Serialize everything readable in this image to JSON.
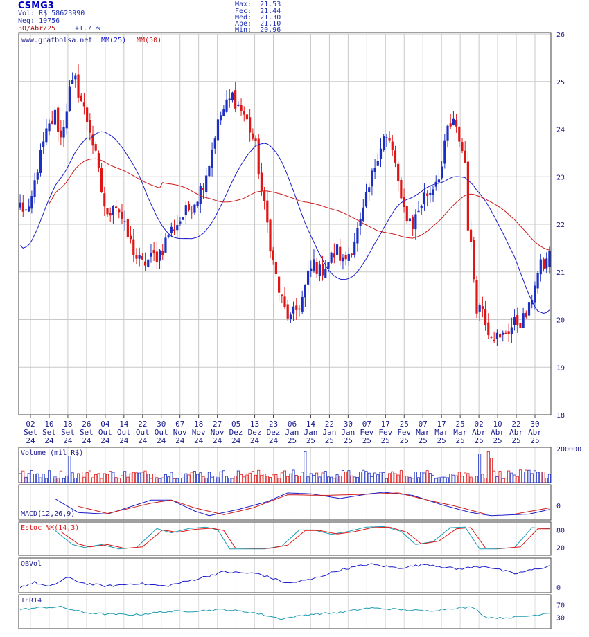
{
  "header": {
    "ticker": "CSMG3",
    "volume": "Vol: R$ 58623990",
    "negocios": "Neg: 10756",
    "date": "30/Abr/25",
    "change": "+1.7 %",
    "max": "Max:  21.53",
    "fec": "Fec:  21.44",
    "med": "Med:  21.30",
    "abe": "Abe:  21.10",
    "min": "Min:  20.96"
  },
  "colors": {
    "up": "#1c2fc2",
    "down": "#e01616",
    "ma25": "#1a1ac8",
    "ma50": "#cc1a1a",
    "grid": "#c8c8c8",
    "cyan": "#1a9ab0"
  },
  "chart_data": [
    {
      "type": "candlestick",
      "source_label": "www.grafbolsa.net",
      "legend": [
        "MM(25)",
        "MM(50)"
      ],
      "ylim": [
        18,
        26
      ],
      "yticks": [
        "18",
        "19",
        "20",
        "21",
        "22",
        "23",
        "24",
        "25",
        "26"
      ],
      "x_dates": [
        "02 Set 24",
        "10 Set 24",
        "18 Set 24",
        "26 Set 24",
        "04 Out 24",
        "14 Out 24",
        "22 Out 24",
        "30 Out 24",
        "07 Nov 24",
        "18 Nov 24",
        "27 Nov 24",
        "05 Dez 24",
        "13 Dez 24",
        "23 Dez 24",
        "06 Jan 25",
        "14 Jan 25",
        "22 Jan 25",
        "30 Jan 25",
        "07 Fev 25",
        "17 Fev 25",
        "25 Fev 25",
        "07 Mar 25",
        "17 Mar 25",
        "25 Mar 25",
        "02 Abr 25",
        "10 Abr 25",
        "22 Abr 25",
        "30 Abr 25"
      ],
      "grid": true,
      "close_path": [
        [
          0,
          22.4
        ],
        [
          3,
          22.2
        ],
        [
          6,
          23.2
        ],
        [
          9,
          23.9
        ],
        [
          12,
          24.3
        ],
        [
          14,
          23.8
        ],
        [
          17,
          24.8
        ],
        [
          19,
          25.0
        ],
        [
          22,
          24.4
        ],
        [
          24,
          24.0
        ],
        [
          26,
          23.4
        ],
        [
          28,
          22.7
        ],
        [
          30,
          22.1
        ],
        [
          32,
          22.5
        ],
        [
          34,
          22.3
        ],
        [
          36,
          21.9
        ],
        [
          38,
          21.6
        ],
        [
          40,
          21.3
        ],
        [
          42,
          21.15
        ],
        [
          44,
          21.25
        ],
        [
          47,
          21.35
        ],
        [
          49,
          21.5
        ],
        [
          51,
          21.8
        ],
        [
          53,
          21.95
        ],
        [
          55,
          22.1
        ],
        [
          57,
          22.25
        ],
        [
          59,
          22.4
        ],
        [
          61,
          22.6
        ],
        [
          63,
          22.9
        ],
        [
          65,
          23.3
        ],
        [
          67,
          23.9
        ],
        [
          69,
          24.3
        ],
        [
          71,
          24.5
        ],
        [
          73,
          24.7
        ],
        [
          75,
          24.5
        ],
        [
          77,
          24.3
        ],
        [
          79,
          24.0
        ],
        [
          81,
          23.6
        ],
        [
          83,
          22.7
        ],
        [
          85,
          22.0
        ],
        [
          87,
          21.2
        ],
        [
          89,
          20.6
        ],
        [
          91,
          20.2
        ],
        [
          93,
          20.0
        ],
        [
          95,
          20.2
        ],
        [
          97,
          20.45
        ],
        [
          99,
          20.9
        ],
        [
          101,
          21.2
        ],
        [
          103,
          21.0
        ],
        [
          105,
          21.15
        ],
        [
          107,
          21.3
        ],
        [
          109,
          21.45
        ],
        [
          111,
          21.2
        ],
        [
          113,
          21.4
        ],
        [
          115,
          21.7
        ],
        [
          117,
          22.0
        ],
        [
          119,
          22.5
        ],
        [
          121,
          23.0
        ],
        [
          123,
          23.5
        ],
        [
          125,
          23.85
        ],
        [
          127,
          23.7
        ],
        [
          129,
          23.3
        ],
        [
          131,
          22.4
        ],
        [
          133,
          22.2
        ],
        [
          135,
          22.0
        ],
        [
          137,
          22.3
        ],
        [
          139,
          22.6
        ],
        [
          141,
          22.7
        ],
        [
          143,
          22.95
        ],
        [
          145,
          23.2
        ],
        [
          147,
          24.0
        ],
        [
          149,
          24.1
        ],
        [
          151,
          23.8
        ],
        [
          153,
          23.3
        ],
        [
          154,
          22.0
        ],
        [
          155,
          21.5
        ],
        [
          157,
          20.3
        ],
        [
          159,
          20.25
        ],
        [
          161,
          19.8
        ],
        [
          163,
          19.7
        ],
        [
          165,
          19.55
        ],
        [
          167,
          19.75
        ],
        [
          169,
          19.85
        ],
        [
          171,
          19.95
        ],
        [
          173,
          20.0
        ],
        [
          175,
          20.2
        ],
        [
          177,
          20.8
        ],
        [
          179,
          21.1
        ],
        [
          181,
          21.2
        ],
        [
          182,
          21.44
        ]
      ]
    },
    {
      "type": "bar",
      "title": "Volume (mil R$)",
      "yticks": [
        "200000"
      ],
      "spikes": [
        [
          17,
          82
        ],
        [
          98,
          95
        ],
        [
          158,
          88
        ],
        [
          161,
          95
        ],
        [
          162,
          75
        ]
      ],
      "base_level": 30
    },
    {
      "type": "line",
      "title": "MACD(12,26,9)",
      "yticks": [
        "0"
      ],
      "series": [
        {
          "values_path": [
            [
              0,
              0.95
            ],
            [
              10,
              0.7
            ],
            [
              20,
              0.15
            ],
            [
              30,
              0.1
            ],
            [
              45,
              0.55
            ],
            [
              52,
              0.55
            ],
            [
              60,
              0.2
            ],
            [
              65,
              0.05
            ],
            [
              75,
              0.25
            ],
            [
              85,
              0.5
            ],
            [
              92,
              0.78
            ],
            [
              100,
              0.75
            ],
            [
              110,
              0.6
            ],
            [
              120,
              0.75
            ],
            [
              125,
              0.8
            ],
            [
              135,
              0.7
            ],
            [
              145,
              0.4
            ],
            [
              155,
              0.15
            ],
            [
              162,
              0.05
            ],
            [
              175,
              0.1
            ],
            [
              182,
              0.25
            ]
          ]
        },
        {
          "values_path": [
            [
              10,
              0.78
            ],
            [
              20,
              0.35
            ],
            [
              30,
              0.12
            ],
            [
              45,
              0.45
            ],
            [
              52,
              0.55
            ],
            [
              60,
              0.3
            ],
            [
              70,
              0.08
            ],
            [
              80,
              0.3
            ],
            [
              92,
              0.72
            ],
            [
              105,
              0.7
            ],
            [
              120,
              0.74
            ],
            [
              130,
              0.78
            ],
            [
              140,
              0.55
            ],
            [
              150,
              0.35
            ],
            [
              160,
              0.1
            ],
            [
              170,
              0.1
            ],
            [
              182,
              0.3
            ]
          ]
        }
      ]
    },
    {
      "type": "line",
      "title": "Estoc %K(14,3)",
      "yticks": [
        "80",
        "20"
      ],
      "series": [
        {
          "values_path": [
            [
              0,
              80
            ],
            [
              8,
              75
            ],
            [
              12,
              78
            ],
            [
              18,
              30
            ],
            [
              22,
              20
            ],
            [
              28,
              30
            ],
            [
              34,
              15
            ],
            [
              40,
              20
            ],
            [
              47,
              85
            ],
            [
              52,
              70
            ],
            [
              58,
              85
            ],
            [
              64,
              90
            ],
            [
              68,
              80
            ],
            [
              72,
              15
            ],
            [
              78,
              15
            ],
            [
              84,
              15
            ],
            [
              90,
              25
            ],
            [
              96,
              80
            ],
            [
              101,
              80
            ],
            [
              107,
              65
            ],
            [
              113,
              75
            ],
            [
              119,
              90
            ],
            [
              125,
              92
            ],
            [
              131,
              75
            ],
            [
              136,
              30
            ],
            [
              142,
              40
            ],
            [
              148,
              88
            ],
            [
              153,
              90
            ],
            [
              158,
              15
            ],
            [
              164,
              15
            ],
            [
              170,
              20
            ],
            [
              176,
              88
            ],
            [
              182,
              85
            ]
          ]
        },
        {
          "values_path": [
            [
              2,
              78
            ],
            [
              10,
              72
            ],
            [
              14,
              74
            ],
            [
              20,
              32
            ],
            [
              24,
              22
            ],
            [
              30,
              30
            ],
            [
              36,
              17
            ],
            [
              42,
              22
            ],
            [
              49,
              80
            ],
            [
              54,
              72
            ],
            [
              60,
              82
            ],
            [
              66,
              86
            ],
            [
              70,
              78
            ],
            [
              74,
              18
            ],
            [
              80,
              17
            ],
            [
              86,
              17
            ],
            [
              92,
              28
            ],
            [
              98,
              78
            ],
            [
              103,
              78
            ],
            [
              109,
              66
            ],
            [
              115,
              74
            ],
            [
              121,
              88
            ],
            [
              127,
              90
            ],
            [
              133,
              72
            ],
            [
              138,
              32
            ],
            [
              144,
              42
            ],
            [
              150,
              84
            ],
            [
              155,
              88
            ],
            [
              160,
              18
            ],
            [
              166,
              17
            ],
            [
              172,
              22
            ],
            [
              178,
              84
            ],
            [
              182,
              84
            ]
          ]
        }
      ]
    },
    {
      "type": "line",
      "title": "OBVol",
      "yticks": [
        "0"
      ],
      "series": [
        {
          "values_path": [
            [
              0,
              -10
            ],
            [
              5,
              15
            ],
            [
              10,
              -10
            ],
            [
              16,
              40
            ],
            [
              22,
              10
            ],
            [
              30,
              -5
            ],
            [
              40,
              10
            ],
            [
              50,
              -5
            ],
            [
              60,
              30
            ],
            [
              70,
              70
            ],
            [
              82,
              60
            ],
            [
              92,
              10
            ],
            [
              100,
              30
            ],
            [
              110,
              80
            ],
            [
              120,
              110
            ],
            [
              130,
              90
            ],
            [
              140,
              110
            ],
            [
              150,
              85
            ],
            [
              160,
              100
            ],
            [
              170,
              60
            ],
            [
              182,
              100
            ]
          ]
        }
      ]
    },
    {
      "type": "line",
      "title": "IFR14",
      "yticks": [
        "70",
        "30"
      ],
      "series": [
        {
          "values_path": [
            [
              0,
              55
            ],
            [
              8,
              62
            ],
            [
              14,
              63
            ],
            [
              22,
              45
            ],
            [
              30,
              40
            ],
            [
              40,
              38
            ],
            [
              50,
              48
            ],
            [
              60,
              50
            ],
            [
              70,
              55
            ],
            [
              80,
              45
            ],
            [
              90,
              25
            ],
            [
              100,
              40
            ],
            [
              110,
              45
            ],
            [
              120,
              60
            ],
            [
              130,
              55
            ],
            [
              140,
              50
            ],
            [
              150,
              60
            ],
            [
              156,
              62
            ],
            [
              160,
              30
            ],
            [
              165,
              28
            ],
            [
              170,
              30
            ],
            [
              176,
              35
            ],
            [
              182,
              45
            ]
          ]
        }
      ]
    }
  ]
}
